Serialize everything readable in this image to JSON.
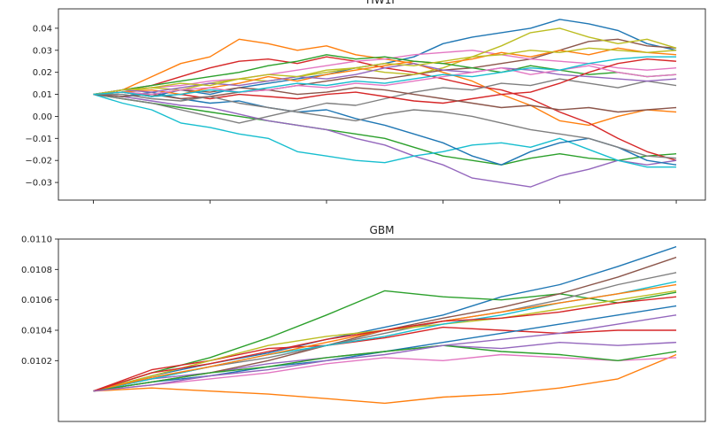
{
  "colors": [
    "#1f77b4",
    "#ff7f0e",
    "#2ca02c",
    "#d62728",
    "#9467bd",
    "#8c564b",
    "#e377c2",
    "#7f7f7f",
    "#bcbd22",
    "#17becf"
  ],
  "chart_data": [
    {
      "type": "line",
      "title": "HW1F",
      "xlabel": "",
      "ylabel": "",
      "x": [
        0,
        1,
        2,
        3,
        4,
        5,
        6,
        7,
        8,
        9,
        10,
        11,
        12,
        13,
        14,
        15,
        16,
        17,
        18,
        19,
        20
      ],
      "xlim": [
        -1.2,
        21.0
      ],
      "xticks": [
        0,
        4,
        8,
        12,
        16,
        20
      ],
      "xtick_labels_shown": false,
      "ylim": [
        -0.038,
        0.0488
      ],
      "yticks": [
        -0.03,
        -0.02,
        -0.01,
        0.0,
        0.01,
        0.02,
        0.03,
        0.04
      ],
      "ytick_labels": [
        "−0.03",
        "−0.02",
        "−0.01",
        "0.00",
        "0.01",
        "0.02",
        "0.03",
        "0.04"
      ],
      "grid": false,
      "series": [
        {
          "values": [
            0.01,
            0.011,
            0.009,
            0.012,
            0.01,
            0.013,
            0.015,
            0.017,
            0.019,
            0.022,
            0.024,
            0.027,
            0.033,
            0.036,
            0.038,
            0.04,
            0.044,
            0.042,
            0.039,
            0.033,
            0.03
          ]
        },
        {
          "values": [
            0.01,
            0.012,
            0.018,
            0.024,
            0.027,
            0.035,
            0.033,
            0.03,
            0.032,
            0.028,
            0.026,
            0.024,
            0.02,
            0.016,
            0.01,
            0.005,
            -0.002,
            -0.004,
            0.0,
            0.003,
            0.002
          ]
        },
        {
          "values": [
            0.01,
            0.008,
            0.006,
            0.004,
            0.002,
            0.0,
            -0.002,
            -0.004,
            -0.006,
            -0.008,
            -0.01,
            -0.014,
            -0.018,
            -0.02,
            -0.022,
            -0.019,
            -0.017,
            -0.019,
            -0.02,
            -0.018,
            -0.017
          ]
        },
        {
          "values": [
            0.01,
            0.012,
            0.014,
            0.018,
            0.022,
            0.025,
            0.026,
            0.024,
            0.027,
            0.025,
            0.022,
            0.02,
            0.017,
            0.014,
            0.012,
            0.008,
            0.002,
            -0.003,
            -0.01,
            -0.016,
            -0.02
          ]
        },
        {
          "values": [
            0.01,
            0.009,
            0.007,
            0.005,
            0.004,
            0.001,
            -0.002,
            -0.004,
            -0.006,
            -0.01,
            -0.013,
            -0.018,
            -0.022,
            -0.028,
            -0.03,
            -0.032,
            -0.027,
            -0.024,
            -0.02,
            -0.022,
            -0.02
          ]
        },
        {
          "values": [
            0.01,
            0.011,
            0.01,
            0.012,
            0.011,
            0.013,
            0.012,
            0.014,
            0.016,
            0.018,
            0.017,
            0.019,
            0.021,
            0.022,
            0.024,
            0.026,
            0.03,
            0.034,
            0.035,
            0.032,
            0.031
          ]
        },
        {
          "values": [
            0.01,
            0.012,
            0.013,
            0.014,
            0.016,
            0.017,
            0.019,
            0.021,
            0.023,
            0.025,
            0.026,
            0.028,
            0.029,
            0.03,
            0.028,
            0.026,
            0.025,
            0.024,
            0.022,
            0.021,
            0.022
          ]
        },
        {
          "values": [
            0.01,
            0.008,
            0.006,
            0.003,
            0.0,
            -0.003,
            0.0,
            0.003,
            0.006,
            0.005,
            0.008,
            0.011,
            0.013,
            0.012,
            0.015,
            0.014,
            0.017,
            0.015,
            0.013,
            0.016,
            0.014
          ]
        },
        {
          "values": [
            0.01,
            0.011,
            0.013,
            0.012,
            0.015,
            0.017,
            0.016,
            0.018,
            0.02,
            0.022,
            0.02,
            0.019,
            0.022,
            0.027,
            0.032,
            0.038,
            0.04,
            0.036,
            0.033,
            0.035,
            0.031
          ]
        },
        {
          "values": [
            0.01,
            0.006,
            0.003,
            -0.003,
            -0.005,
            -0.008,
            -0.01,
            -0.016,
            -0.018,
            -0.02,
            -0.021,
            -0.018,
            -0.016,
            -0.013,
            -0.012,
            -0.014,
            -0.01,
            -0.015,
            -0.02,
            -0.023,
            -0.023
          ]
        },
        {
          "values": [
            0.01,
            0.009,
            0.011,
            0.008,
            0.006,
            0.007,
            0.004,
            0.002,
            0.003,
            -0.001,
            -0.004,
            -0.008,
            -0.012,
            -0.018,
            -0.022,
            -0.016,
            -0.012,
            -0.01,
            -0.014,
            -0.02,
            -0.022
          ]
        },
        {
          "values": [
            0.01,
            0.011,
            0.012,
            0.01,
            0.013,
            0.015,
            0.018,
            0.016,
            0.019,
            0.021,
            0.023,
            0.025,
            0.024,
            0.026,
            0.029,
            0.027,
            0.03,
            0.028,
            0.031,
            0.029,
            0.028
          ]
        },
        {
          "values": [
            0.01,
            0.012,
            0.014,
            0.016,
            0.018,
            0.02,
            0.023,
            0.025,
            0.028,
            0.026,
            0.027,
            0.025,
            0.024,
            0.022,
            0.02,
            0.023,
            0.021,
            0.019,
            0.02,
            0.018,
            0.019
          ]
        },
        {
          "values": [
            0.01,
            0.011,
            0.009,
            0.01,
            0.008,
            0.01,
            0.009,
            0.008,
            0.01,
            0.011,
            0.009,
            0.007,
            0.006,
            0.008,
            0.01,
            0.011,
            0.015,
            0.02,
            0.024,
            0.026,
            0.025
          ]
        },
        {
          "values": [
            0.01,
            0.012,
            0.011,
            0.013,
            0.015,
            0.014,
            0.016,
            0.018,
            0.017,
            0.019,
            0.022,
            0.024,
            0.021,
            0.02,
            0.022,
            0.021,
            0.019,
            0.018,
            0.017,
            0.016,
            0.017
          ]
        },
        {
          "values": [
            0.01,
            0.009,
            0.01,
            0.008,
            0.009,
            0.011,
            0.012,
            0.01,
            0.011,
            0.013,
            0.012,
            0.01,
            0.008,
            0.006,
            0.004,
            0.005,
            0.003,
            0.004,
            0.002,
            0.003,
            0.004
          ]
        },
        {
          "values": [
            0.01,
            0.011,
            0.01,
            0.012,
            0.013,
            0.011,
            0.012,
            0.014,
            0.013,
            0.015,
            0.014,
            0.016,
            0.018,
            0.02,
            0.022,
            0.019,
            0.021,
            0.023,
            0.02,
            0.018,
            0.019
          ]
        },
        {
          "values": [
            0.01,
            0.01,
            0.008,
            0.007,
            0.009,
            0.006,
            0.004,
            0.002,
            0.0,
            -0.002,
            0.001,
            0.003,
            0.002,
            0.0,
            -0.003,
            -0.006,
            -0.008,
            -0.01,
            -0.014,
            -0.018,
            -0.019
          ]
        },
        {
          "values": [
            0.01,
            0.012,
            0.013,
            0.015,
            0.014,
            0.017,
            0.019,
            0.018,
            0.021,
            0.022,
            0.024,
            0.023,
            0.025,
            0.027,
            0.028,
            0.03,
            0.029,
            0.031,
            0.03,
            0.029,
            0.03
          ]
        },
        {
          "values": [
            0.01,
            0.011,
            0.009,
            0.01,
            0.012,
            0.011,
            0.013,
            0.015,
            0.014,
            0.016,
            0.015,
            0.017,
            0.019,
            0.018,
            0.02,
            0.022,
            0.021,
            0.024,
            0.026,
            0.027,
            0.027
          ]
        }
      ]
    },
    {
      "type": "line",
      "title": "GBM",
      "xlabel": "",
      "ylabel": "",
      "x": [
        0,
        1,
        2,
        3,
        4,
        5,
        6,
        7,
        8,
        9,
        10
      ],
      "xlim": [
        -0.6,
        10.5
      ],
      "ylim": [
        0.0098,
        0.011
      ],
      "yticks": [
        0.0102,
        0.0104,
        0.0106,
        0.0108,
        0.011
      ],
      "ytick_labels": [
        "0.0102",
        "0.0104",
        "0.0106",
        "0.0108",
        "0.0110"
      ],
      "grid": false,
      "series": [
        {
          "values": [
            0.01,
            0.0101,
            0.01018,
            0.01025,
            0.01034,
            0.01042,
            0.0105,
            0.01062,
            0.0107,
            0.01082,
            0.01095
          ]
        },
        {
          "values": [
            0.01,
            0.01002,
            0.01,
            0.00998,
            0.00995,
            0.00992,
            0.00996,
            0.00998,
            0.01002,
            0.01008,
            0.01024
          ]
        },
        {
          "values": [
            0.01,
            0.01012,
            0.01022,
            0.01035,
            0.0105,
            0.01066,
            0.01062,
            0.0106,
            0.01064,
            0.01058,
            0.01065
          ]
        },
        {
          "values": [
            0.01,
            0.01014,
            0.0102,
            0.01028,
            0.0103,
            0.01035,
            0.01042,
            0.0104,
            0.01038,
            0.0104,
            0.0104
          ]
        },
        {
          "values": [
            0.01,
            0.01008,
            0.01012,
            0.01018,
            0.01022,
            0.01026,
            0.0103,
            0.01028,
            0.01032,
            0.0103,
            0.01032
          ]
        },
        {
          "values": [
            0.01,
            0.01006,
            0.01012,
            0.0102,
            0.0103,
            0.0104,
            0.01048,
            0.01055,
            0.01064,
            0.01075,
            0.01088
          ]
        },
        {
          "values": [
            0.01,
            0.01004,
            0.01008,
            0.01012,
            0.01018,
            0.01022,
            0.0102,
            0.01024,
            0.01022,
            0.0102,
            0.01022
          ]
        },
        {
          "values": [
            0.01,
            0.01008,
            0.01016,
            0.01022,
            0.0103,
            0.01038,
            0.01046,
            0.01052,
            0.0106,
            0.0107,
            0.01078
          ]
        },
        {
          "values": [
            0.01,
            0.0101,
            0.0102,
            0.0103,
            0.01036,
            0.0104,
            0.01044,
            0.01048,
            0.01054,
            0.0106,
            0.01066
          ]
        },
        {
          "values": [
            0.01,
            0.01008,
            0.01016,
            0.01024,
            0.0103,
            0.01036,
            0.01044,
            0.0105,
            0.01058,
            0.01064,
            0.01072
          ]
        },
        {
          "values": [
            0.01,
            0.01006,
            0.0101,
            0.01016,
            0.0102,
            0.01026,
            0.01032,
            0.01038,
            0.01044,
            0.0105,
            0.01056
          ]
        },
        {
          "values": [
            0.01,
            0.01009,
            0.01016,
            0.01024,
            0.01032,
            0.0104,
            0.01046,
            0.01052,
            0.01058,
            0.01064,
            0.0107
          ]
        },
        {
          "values": [
            0.01,
            0.01006,
            0.01012,
            0.01016,
            0.01022,
            0.01026,
            0.0103,
            0.01026,
            0.01024,
            0.0102,
            0.01026
          ]
        },
        {
          "values": [
            0.01,
            0.01012,
            0.01018,
            0.01026,
            0.01034,
            0.0104,
            0.01046,
            0.01048,
            0.01052,
            0.01058,
            0.01062
          ]
        },
        {
          "values": [
            0.01,
            0.01004,
            0.0101,
            0.01014,
            0.0102,
            0.01024,
            0.0103,
            0.01034,
            0.01038,
            0.01044,
            0.0105
          ]
        }
      ]
    }
  ]
}
